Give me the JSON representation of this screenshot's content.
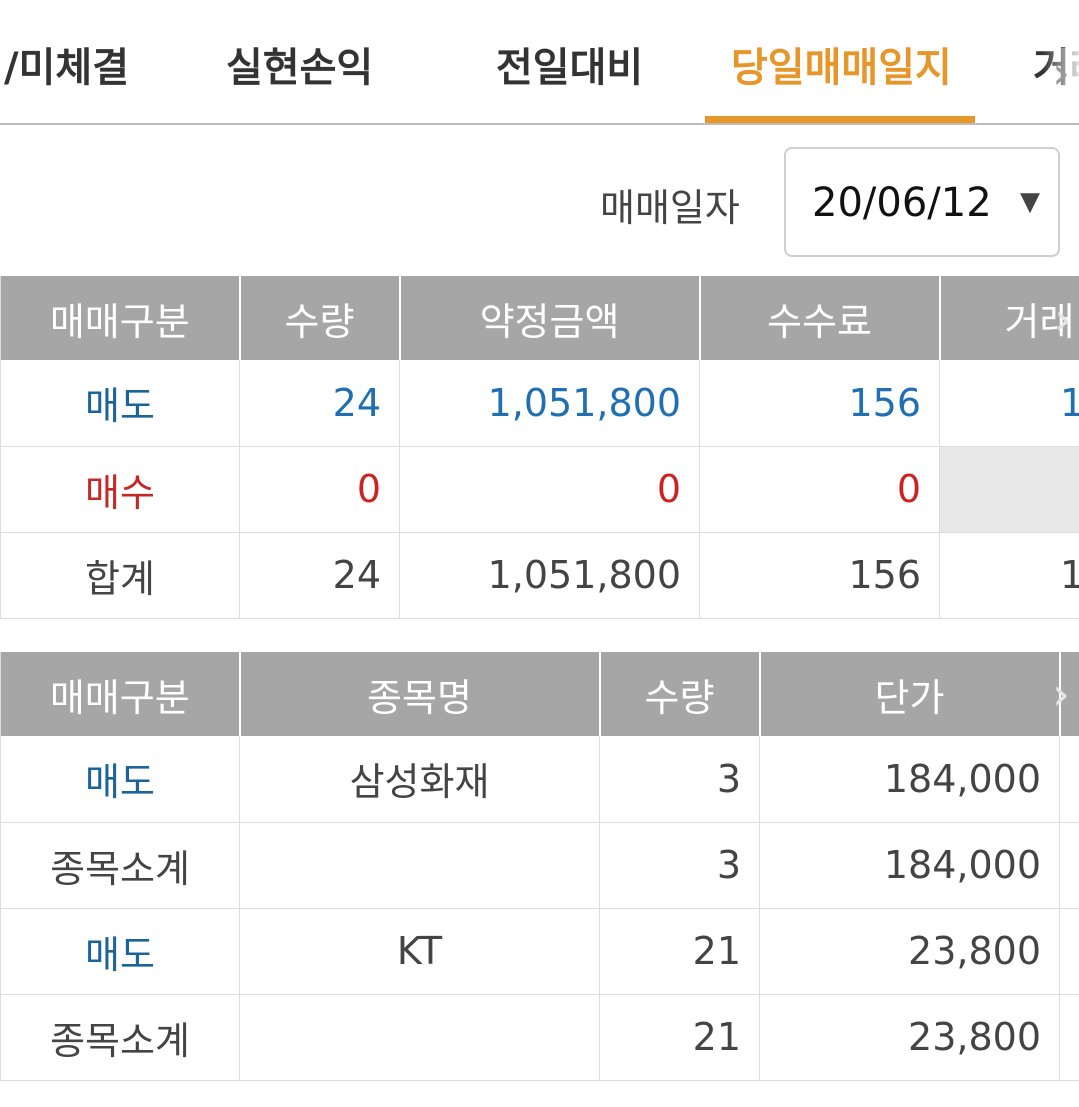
{
  "tabs": [
    {
      "label": "/미체결",
      "active": false
    },
    {
      "label": "실현손익",
      "active": false
    },
    {
      "label": "전일대비",
      "active": false
    },
    {
      "label": "당일매매일지",
      "active": true
    },
    {
      "label": "거래",
      "active": false
    }
  ],
  "date_filter": {
    "label": "매매일자",
    "value": "20/06/12"
  },
  "summary_table": {
    "headers": [
      "매매구분",
      "수량",
      "약정금액",
      "수수료",
      "거래"
    ],
    "rows": [
      {
        "type": "매도",
        "qty": "24",
        "amount": "1,051,800",
        "fee": "156",
        "extra": "1"
      },
      {
        "type": "매수",
        "qty": "0",
        "amount": "0",
        "fee": "0",
        "extra": ""
      },
      {
        "type": "합계",
        "qty": "24",
        "amount": "1,051,800",
        "fee": "156",
        "extra": "1"
      }
    ]
  },
  "detail_table": {
    "headers": [
      "매매구분",
      "종목명",
      "수량",
      "단가"
    ],
    "rows": [
      {
        "type": "매도",
        "name": "삼성화재",
        "qty": "3",
        "price": "184,000"
      },
      {
        "type": "종목소계",
        "name": "",
        "qty": "3",
        "price": "184,000"
      },
      {
        "type": "매도",
        "name": "KT",
        "qty": "21",
        "price": "23,800"
      },
      {
        "type": "종목소계",
        "name": "",
        "qty": "21",
        "price": "23,800"
      }
    ]
  },
  "colors": {
    "accent": "#e8952a",
    "sell": "#1f6fb2",
    "buy": "#cc2222",
    "header_bg": "#a6a6a6"
  }
}
